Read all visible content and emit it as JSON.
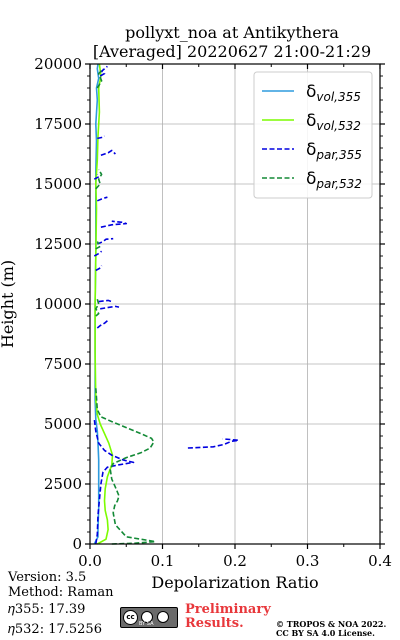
{
  "chart_data": {
    "type": "line",
    "title": "pollyxt_noa at Antikythera",
    "subtitle": "[Averaged] 20220627 21:00-21:29",
    "xlabel": "Depolarization Ratio",
    "ylabel": "Height (m)",
    "xlim": [
      0,
      0.4
    ],
    "ylim": [
      0,
      20000
    ],
    "xticks": [
      "0.0",
      "0.1",
      "0.2",
      "0.3",
      "0.4"
    ],
    "yticks": [
      "0",
      "2500",
      "5000",
      "7500",
      "10000",
      "12500",
      "15000",
      "17500",
      "20000"
    ],
    "grid": true,
    "legend_position": "top-right",
    "series": [
      {
        "name": "δvol,355",
        "label_main": "δ",
        "label_sub": "vol,355",
        "color": "#2e9bde",
        "style": "solid",
        "points": [
          [
            0.006,
            0
          ],
          [
            0.011,
            300
          ],
          [
            0.011,
            700
          ],
          [
            0.012,
            1500
          ],
          [
            0.012,
            2500
          ],
          [
            0.012,
            3500
          ],
          [
            0.011,
            4200
          ],
          [
            0.01,
            4700
          ],
          [
            0.008,
            5200
          ],
          [
            0.007,
            6000
          ],
          [
            0.007,
            8000
          ],
          [
            0.007,
            10000
          ],
          [
            0.008,
            12000
          ],
          [
            0.008,
            14000
          ],
          [
            0.008,
            15500
          ],
          [
            0.009,
            16800
          ],
          [
            0.008,
            17500
          ],
          [
            0.01,
            18500
          ],
          [
            0.009,
            19000
          ],
          [
            0.012,
            19400
          ],
          [
            0.01,
            19800
          ],
          [
            0.011,
            20000
          ]
        ]
      },
      {
        "name": "δvol,532",
        "label_main": "δ",
        "label_sub": "vol,532",
        "color": "#7cfc00",
        "style": "solid",
        "points": [
          [
            0.01,
            0
          ],
          [
            0.022,
            200
          ],
          [
            0.025,
            600
          ],
          [
            0.024,
            1000
          ],
          [
            0.021,
            1400
          ],
          [
            0.02,
            1800
          ],
          [
            0.021,
            2300
          ],
          [
            0.024,
            2800
          ],
          [
            0.03,
            3300
          ],
          [
            0.031,
            3700
          ],
          [
            0.026,
            4200
          ],
          [
            0.02,
            4600
          ],
          [
            0.014,
            5000
          ],
          [
            0.01,
            5400
          ],
          [
            0.008,
            6000
          ],
          [
            0.007,
            8000
          ],
          [
            0.007,
            10000
          ],
          [
            0.008,
            12000
          ],
          [
            0.009,
            14000
          ],
          [
            0.008,
            15000
          ],
          [
            0.01,
            16000
          ],
          [
            0.011,
            17000
          ],
          [
            0.013,
            18000
          ],
          [
            0.012,
            19000
          ],
          [
            0.015,
            19500
          ],
          [
            0.013,
            20000
          ]
        ]
      },
      {
        "name": "δpar,355",
        "label_main": "δ",
        "label_sub": "par,355",
        "color": "#0000e0",
        "style": "dashed",
        "points": [
          [
            0.008,
            0
          ],
          [
            0.01,
            400
          ],
          [
            0.011,
            1200
          ],
          [
            0.015,
            2500
          ],
          [
            0.018,
            3000
          ],
          [
            0.024,
            3200
          ],
          [
            0.04,
            3300
          ],
          [
            0.06,
            3400
          ],
          [
            0.046,
            3500
          ],
          [
            0.03,
            3700
          ],
          [
            0.02,
            3900
          ],
          [
            0.012,
            4200
          ],
          [
            0.008,
            4700
          ],
          [
            0.006,
            5200
          ]
        ],
        "segments": [
          [
            [
              0.135,
              4000
            ],
            [
              0.17,
              4050
            ],
            [
              0.185,
              4150
            ],
            [
              0.195,
              4280
            ],
            [
              0.205,
              4320
            ],
            [
              0.195,
              4350
            ],
            [
              0.183,
              4380
            ]
          ],
          [
            [
              0.01,
              9000
            ],
            [
              0.014,
              9100
            ],
            [
              0.02,
              9200
            ],
            [
              0.024,
              9300
            ]
          ],
          [
            [
              0.014,
              9800
            ],
            [
              0.024,
              9850
            ],
            [
              0.035,
              9900
            ],
            [
              0.04,
              9870
            ]
          ],
          [
            [
              0.012,
              10100
            ],
            [
              0.025,
              10150
            ],
            [
              0.03,
              10100
            ]
          ],
          [
            [
              0.008,
              11400
            ],
            [
              0.014,
              11500
            ],
            [
              0.016,
              11600
            ]
          ],
          [
            [
              0.006,
              12000
            ],
            [
              0.012,
              12100
            ],
            [
              0.016,
              12200
            ]
          ],
          [
            [
              0.01,
              12500
            ],
            [
              0.018,
              12600
            ],
            [
              0.022,
              12700
            ],
            [
              0.032,
              12720
            ]
          ],
          [
            [
              0.015,
              13200
            ],
            [
              0.03,
              13300
            ],
            [
              0.05,
              13350
            ],
            [
              0.045,
              13400
            ],
            [
              0.03,
              13450
            ]
          ],
          [
            [
              0.01,
              14300
            ],
            [
              0.018,
              14400
            ],
            [
              0.024,
              14450
            ]
          ],
          [
            [
              0.006,
              15200
            ],
            [
              0.012,
              15300
            ],
            [
              0.01,
              15400
            ]
          ],
          [
            [
              0.015,
              16200
            ],
            [
              0.025,
              16300
            ],
            [
              0.03,
              16400
            ],
            [
              0.035,
              16250
            ]
          ],
          [
            [
              0.01,
              16900
            ],
            [
              0.018,
              16950
            ],
            [
              0.02,
              17000
            ]
          ],
          [
            [
              0.014,
              19500
            ],
            [
              0.02,
              19600
            ],
            [
              0.016,
              19700
            ],
            [
              0.024,
              19900
            ]
          ]
        ]
      },
      {
        "name": "δpar,532",
        "label_main": "δ",
        "label_sub": "par,532",
        "color": "#138a36",
        "style": "dashed",
        "points": [
          [
            0.03,
            0
          ],
          [
            0.06,
            30
          ],
          [
            0.09,
            100
          ],
          [
            0.05,
            300
          ],
          [
            0.035,
            800
          ],
          [
            0.032,
            1300
          ],
          [
            0.034,
            1600
          ],
          [
            0.038,
            1800
          ],
          [
            0.04,
            2000
          ],
          [
            0.036,
            2300
          ],
          [
            0.03,
            2700
          ],
          [
            0.028,
            3100
          ],
          [
            0.032,
            3350
          ],
          [
            0.05,
            3600
          ],
          [
            0.07,
            3800
          ],
          [
            0.083,
            4000
          ],
          [
            0.088,
            4250
          ],
          [
            0.085,
            4400
          ],
          [
            0.07,
            4600
          ],
          [
            0.05,
            4850
          ],
          [
            0.03,
            5100
          ],
          [
            0.015,
            5300
          ],
          [
            0.01,
            5600
          ],
          [
            0.008,
            6500
          ]
        ],
        "segments": [
          [
            [
              0.008,
              9500
            ],
            [
              0.012,
              9600
            ],
            [
              0.008,
              9800
            ],
            [
              0.012,
              10000
            ],
            [
              0.01,
              10200
            ]
          ],
          [
            [
              0.008,
              12300
            ],
            [
              0.014,
              12400
            ],
            [
              0.01,
              12600
            ]
          ],
          [
            [
              0.008,
              14800
            ],
            [
              0.014,
              15000
            ],
            [
              0.012,
              15200
            ],
            [
              0.016,
              15400
            ],
            [
              0.012,
              15600
            ]
          ],
          [
            [
              0.01,
              19000
            ],
            [
              0.016,
              19300
            ],
            [
              0.012,
              19600
            ],
            [
              0.018,
              19800
            ]
          ]
        ]
      }
    ]
  },
  "footer": {
    "version": "Version: 3.5",
    "method": "Method: Raman",
    "eta355": "𝜂355:  17.39",
    "eta532": "𝜂532: 17.5256",
    "preliminary_line1": "Preliminary",
    "preliminary_line2": "Results.",
    "copyright_line1": "© TROPOS & NOA 2022.",
    "copyright_line2": "CC BY SA 4.0 License."
  },
  "license_badge": {
    "icon": "cc-by-sa-icon",
    "text": "BY SA"
  }
}
